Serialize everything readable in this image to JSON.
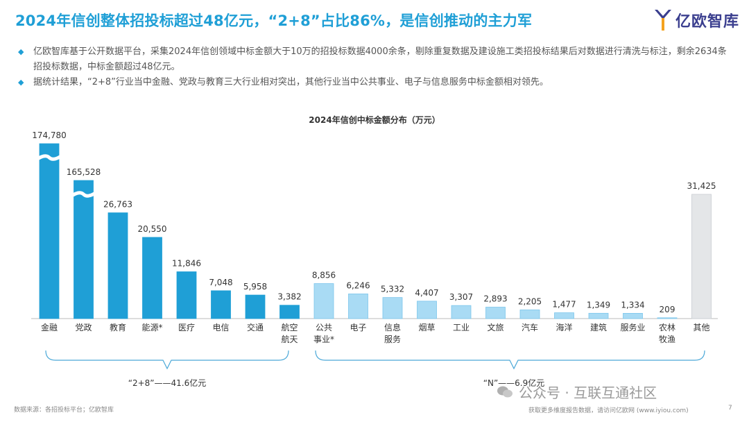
{
  "title": "2024年信创整体招投标超过48亿元，“2+8”占比86%，是信创推动的主力军",
  "logo": {
    "text": "亿欧智库"
  },
  "bullets": [
    "亿欧智库基于公开数据平台，采集2024年信创领域中标金额大于10万的招投标数据4000余条，剔除重复数据及建设施工类招投标结果后对数据进行清洗与标注，剩余2634条招投标数据，中标金额超过48亿元。",
    "据统计结果，“2+8”行业当中金融、党政与教育三大行业相对突出，其他行业当中公共事业、电子与信息服务中标金额相对领先。"
  ],
  "chart_data": {
    "type": "bar",
    "title": "2024年信创中标金额分布（万元）",
    "categories": [
      "金融",
      "党政",
      "教育",
      "能源*",
      "医疗",
      "电信",
      "交通",
      "航空航天",
      "公共事业*",
      "电子",
      "信息服务",
      "烟草",
      "工业",
      "文旅",
      "汽车",
      "海洋",
      "建筑",
      "服务业",
      "农林牧渔",
      "其他"
    ],
    "category_lines": [
      [
        "金融"
      ],
      [
        "党政"
      ],
      [
        "教育"
      ],
      [
        "能源*"
      ],
      [
        "医疗"
      ],
      [
        "电信"
      ],
      [
        "交通"
      ],
      [
        "航空",
        "航天"
      ],
      [
        "公共",
        "事业*"
      ],
      [
        "电子"
      ],
      [
        "信息",
        "服务"
      ],
      [
        "烟草"
      ],
      [
        "工业"
      ],
      [
        "文旅"
      ],
      [
        "汽车"
      ],
      [
        "海洋"
      ],
      [
        "建筑"
      ],
      [
        "服务业"
      ],
      [
        "农林",
        "牧渔"
      ],
      [
        "其他"
      ]
    ],
    "values": [
      174780,
      165528,
      26763,
      20550,
      11846,
      7048,
      5958,
      3382,
      8856,
      6246,
      5332,
      4407,
      3307,
      2893,
      2205,
      1477,
      1349,
      1334,
      209,
      31425
    ],
    "value_labels": [
      "174,780",
      "165,528",
      "26,763",
      "20,550",
      "11,846",
      "7,048",
      "5,958",
      "3,382",
      "8,856",
      "6,246",
      "5,332",
      "4,407",
      "3,307",
      "2,893",
      "2,205",
      "1,477",
      "1,349",
      "1,334",
      "209",
      "31,425"
    ],
    "groups": [
      {
        "name": "2+8",
        "label": "“2+8”——41.6亿元",
        "color": "#1f9fd6"
      },
      {
        "name": "N",
        "label": "“N”——6.9亿元",
        "color": "#a9dbf4"
      },
      {
        "name": "other",
        "label": "",
        "color": "#e4e6e8"
      }
    ],
    "group_of": [
      "2+8",
      "2+8",
      "2+8",
      "2+8",
      "2+8",
      "2+8",
      "2+8",
      "2+8",
      "N",
      "N",
      "N",
      "N",
      "N",
      "N",
      "N",
      "N",
      "N",
      "N",
      "N",
      "other"
    ],
    "axis_break": true,
    "ylim": [
      0,
      32000
    ]
  },
  "footer": {
    "source": "数据来源：各招投标平台；亿欧智库",
    "note": "获取更多维度报告数据，请访问亿欧网 (www.iyiou.com)",
    "page": "7"
  },
  "watermark": "公众号 · 互联互通社区"
}
